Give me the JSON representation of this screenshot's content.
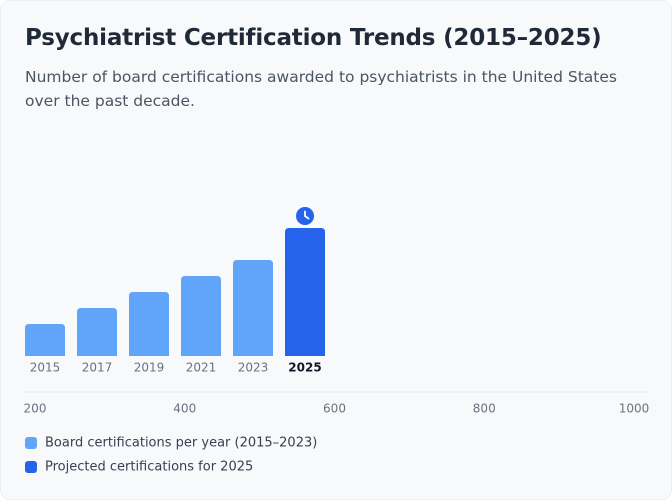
{
  "chart_data": {
    "type": "bar",
    "title": "Psychiatrist Certification Trends (2015–2025)",
    "subtitle": "Number of board certifications awarded to psychiatrists in the United States over the past decade.",
    "categories": [
      "2015",
      "2017",
      "2019",
      "2021",
      "2023",
      "2025"
    ],
    "series": [
      {
        "name": "Board certifications per year (2015–2023)",
        "color": "#60a5fa",
        "values": [
          200,
          300,
          400,
          500,
          600,
          null
        ]
      },
      {
        "name": "Projected certifications for 2025",
        "color": "#2563eb",
        "values": [
          null,
          null,
          null,
          null,
          null,
          800
        ]
      }
    ],
    "ylim": [
      0,
      1000
    ],
    "xlim": [
      200,
      1000
    ],
    "xticks": [
      200,
      400,
      600,
      800,
      1000
    ]
  }
}
